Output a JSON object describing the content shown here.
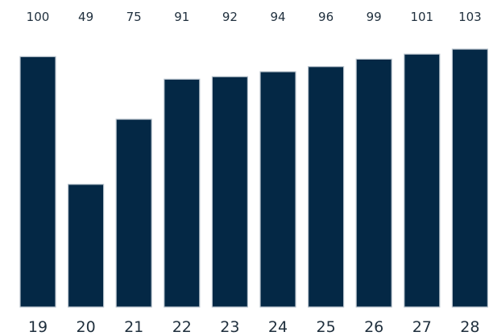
{
  "chart_data": {
    "type": "bar",
    "categories": [
      "19",
      "20",
      "21",
      "22",
      "23",
      "24",
      "25",
      "26",
      "27",
      "28"
    ],
    "values": [
      100,
      49,
      75,
      91,
      92,
      94,
      96,
      99,
      101,
      103
    ],
    "value_labels": [
      "100",
      "49",
      "75",
      "91",
      "92",
      "94",
      "96",
      "99",
      "101",
      "103"
    ],
    "title": "",
    "xlabel": "",
    "ylabel": "",
    "ylim": [
      0,
      103
    ],
    "grid": false,
    "bar_color": "#042845",
    "bar_outline_color": "#b7c2cc",
    "label_color": "#1f2f3d"
  }
}
